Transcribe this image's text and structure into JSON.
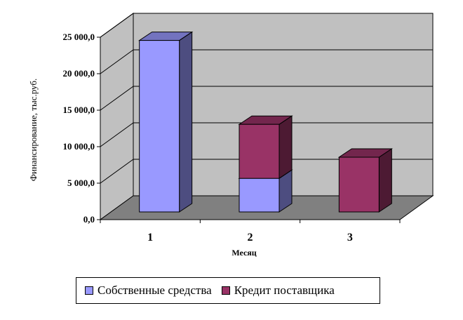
{
  "chart_data": {
    "type": "bar",
    "stacked": true,
    "three_d": true,
    "categories": [
      "1",
      "2",
      "3"
    ],
    "series": [
      {
        "name": "Собственные средства",
        "values": [
          23500,
          4600,
          0
        ],
        "color": "#9999ff"
      },
      {
        "name": "Кредит поставщика",
        "values": [
          0,
          7400,
          7500
        ],
        "color": "#993366"
      }
    ],
    "y_ticks": [
      "0,0",
      "5 000,0",
      "10 000,0",
      "15 000,0",
      "20 000,0",
      "25 000,0"
    ],
    "ylim": [
      0,
      25000
    ],
    "xlabel": "Месяц",
    "ylabel": "Финансирование, тыс.руб.",
    "grid": true,
    "legend_position": "bottom",
    "wall_color": "#c0c0c0",
    "floor_color": "#808080"
  }
}
